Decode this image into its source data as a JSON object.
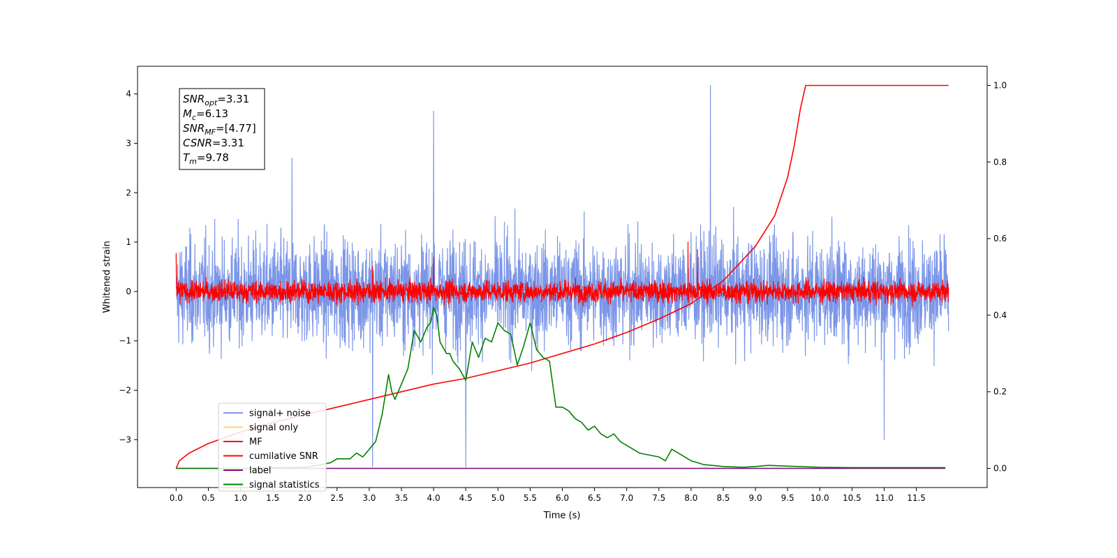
{
  "chart_data": {
    "type": "line",
    "xlabel": "Time (s)",
    "ylabel": "Whitened strain",
    "xlim": [
      -0.6,
      12.6
    ],
    "ylim": [
      -3.97,
      4.56
    ],
    "y2lim": [
      -0.05,
      1.05
    ],
    "x_ticks": [
      "0.0",
      "0.5",
      "1.0",
      "1.5",
      "2.0",
      "2.5",
      "3.0",
      "3.5",
      "4.0",
      "4.5",
      "5.0",
      "5.5",
      "6.0",
      "6.5",
      "7.0",
      "7.5",
      "8.0",
      "8.5",
      "9.0",
      "9.5",
      "10.0",
      "10.5",
      "11.0",
      "11.5"
    ],
    "y_ticks": [
      "−3",
      "−2",
      "−1",
      "0",
      "1",
      "2",
      "3",
      "4"
    ],
    "y2_ticks": [
      "0.0",
      "0.2",
      "0.4",
      "0.6",
      "0.8",
      "1.0"
    ],
    "annotation": [
      {
        "name": "SNR",
        "sub": "opt",
        "value": "3.31"
      },
      {
        "name": "M",
        "sub": "c",
        "value": "6.13"
      },
      {
        "name": "SNR",
        "sub": "MF",
        "value": "[4.77]"
      },
      {
        "name": "CSNR",
        "sub": "",
        "value": "3.31"
      },
      {
        "name": "T",
        "sub": "m",
        "value": "9.78"
      }
    ],
    "legend_position": "lower left",
    "series": [
      {
        "name": "signal+ noise",
        "color": "#7b96e8",
        "axis": "left",
        "style": "noise",
        "x_range": [
          0,
          12.0
        ],
        "spread": 0.75,
        "spikes": [
          [
            1.8,
            2.7
          ],
          [
            4.0,
            3.65
          ],
          [
            8.3,
            4.17
          ],
          [
            3.05,
            -3.55
          ],
          [
            4.5,
            -3.55
          ],
          [
            11.0,
            -3.0
          ]
        ]
      },
      {
        "name": "signal only",
        "color": "#ffd080",
        "axis": "left",
        "style": "flat",
        "x": [
          0,
          12.0
        ],
        "values": [
          0,
          0
        ]
      },
      {
        "name": "MF",
        "color": "#ff0000",
        "axis": "left",
        "style": "noise",
        "x_range": [
          0,
          12.0
        ],
        "spread": 0.15,
        "spikes": [
          [
            0,
            0.78
          ],
          [
            3.05,
            0.5
          ],
          [
            4.0,
            0.7
          ],
          [
            7.95,
            1.0
          ],
          [
            8.1,
            0.85
          ]
        ]
      },
      {
        "name": "cumilative SNR",
        "color": "#ff0000",
        "axis": "right",
        "style": "line",
        "x": [
          0,
          0.05,
          0.2,
          0.5,
          1,
          1.5,
          2,
          2.5,
          3,
          3.5,
          4,
          4.5,
          5,
          5.5,
          6,
          6.5,
          7,
          7.5,
          8,
          8.5,
          9,
          9.3,
          9.5,
          9.6,
          9.7,
          9.78,
          10.5,
          11.0,
          11.5,
          12.0
        ],
        "values": [
          0.0,
          0.02,
          0.04,
          0.065,
          0.095,
          0.12,
          0.14,
          0.16,
          0.18,
          0.2,
          0.22,
          0.235,
          0.255,
          0.275,
          0.3,
          0.325,
          0.355,
          0.39,
          0.43,
          0.49,
          0.58,
          0.66,
          0.76,
          0.84,
          0.94,
          1.0,
          1.0,
          1.0,
          1.0,
          1.0
        ]
      },
      {
        "name": "label",
        "color": "#800080",
        "axis": "right",
        "style": "line",
        "x": [
          0,
          11.95
        ],
        "values": [
          0,
          0
        ]
      },
      {
        "name": "signal statistics",
        "color": "#008000",
        "axis": "right",
        "style": "line",
        "x": [
          0.0,
          1.0,
          2.0,
          2.2,
          2.4,
          2.5,
          2.7,
          2.8,
          2.9,
          3.0,
          3.05,
          3.1,
          3.2,
          3.3,
          3.35,
          3.4,
          3.5,
          3.6,
          3.65,
          3.7,
          3.8,
          3.9,
          3.95,
          4.0,
          4.05,
          4.1,
          4.2,
          4.25,
          4.3,
          4.4,
          4.5,
          4.6,
          4.7,
          4.8,
          4.9,
          5.0,
          5.1,
          5.2,
          5.3,
          5.4,
          5.5,
          5.6,
          5.7,
          5.8,
          5.9,
          6.0,
          6.1,
          6.2,
          6.3,
          6.4,
          6.5,
          6.6,
          6.7,
          6.8,
          6.9,
          7.0,
          7.2,
          7.5,
          7.6,
          7.7,
          7.8,
          7.9,
          8.0,
          8.2,
          8.5,
          8.8,
          9.0,
          9.2,
          9.5,
          10.0,
          10.5,
          11.0,
          11.5,
          11.95
        ],
        "values": [
          0.0,
          0.0,
          0.003,
          0.008,
          0.015,
          0.025,
          0.025,
          0.04,
          0.03,
          0.05,
          0.06,
          0.07,
          0.14,
          0.245,
          0.2,
          0.18,
          0.22,
          0.26,
          0.31,
          0.36,
          0.33,
          0.37,
          0.38,
          0.42,
          0.4,
          0.33,
          0.3,
          0.3,
          0.28,
          0.26,
          0.23,
          0.33,
          0.29,
          0.34,
          0.33,
          0.38,
          0.36,
          0.35,
          0.27,
          0.32,
          0.38,
          0.31,
          0.29,
          0.28,
          0.16,
          0.16,
          0.15,
          0.13,
          0.12,
          0.1,
          0.11,
          0.09,
          0.08,
          0.09,
          0.07,
          0.06,
          0.04,
          0.03,
          0.02,
          0.05,
          0.04,
          0.03,
          0.02,
          0.01,
          0.005,
          0.003,
          0.005,
          0.008,
          0.006,
          0.003,
          0.002,
          0.002,
          0.002,
          0.002
        ]
      }
    ]
  }
}
